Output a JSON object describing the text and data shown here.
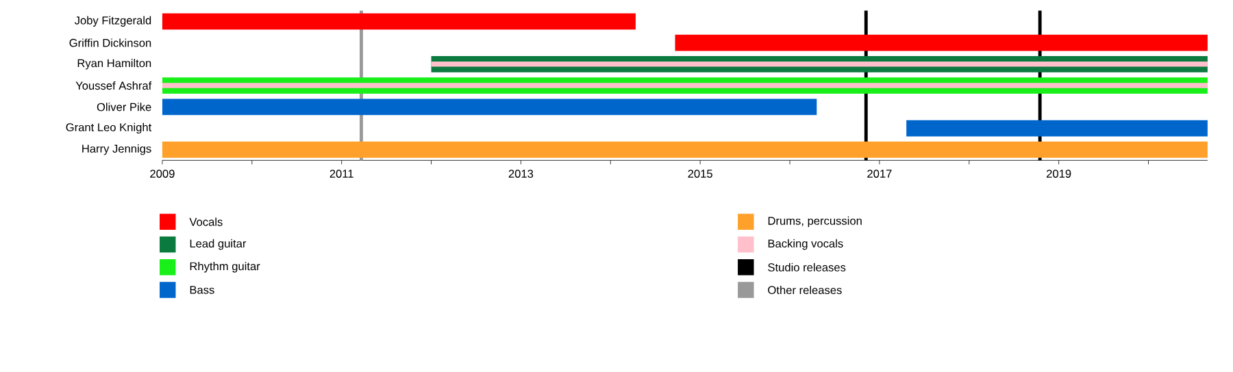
{
  "chart_data": {
    "type": "bar",
    "orientation": "horizontal",
    "legend": "bottom",
    "categories": [
      "Joby Fitzgerald",
      "Griffin Dickinson",
      "Ryan Hamilton",
      "Youssef Ashraf",
      "Oliver Pike",
      "Grant Leo Knight",
      "Harry Jennigs"
    ],
    "series": [
      {
        "name": "Vocals",
        "color": "#ff0000",
        "base": [
          2009,
          2014.72,
          null,
          null,
          null,
          null,
          null
        ],
        "values": [
          5.28,
          5.94,
          null,
          null,
          null,
          null,
          null
        ]
      },
      {
        "name": "Lead guitar",
        "color": "#0b7a3e",
        "base": [
          null,
          null,
          2012,
          null,
          null,
          null,
          null
        ],
        "values": [
          null,
          null,
          8.66,
          null,
          null,
          null,
          null
        ]
      },
      {
        "name": "Rhythm guitar",
        "color": "#19f019",
        "base": [
          null,
          null,
          null,
          2009,
          null,
          null,
          null
        ],
        "values": [
          null,
          null,
          null,
          11.66,
          null,
          null,
          null
        ]
      },
      {
        "name": "Bass",
        "color": "#0066cc",
        "base": [
          null,
          null,
          null,
          null,
          2009,
          2017.3,
          null
        ],
        "values": [
          null,
          null,
          null,
          null,
          7.3,
          3.36,
          null
        ]
      },
      {
        "name": "Drums, percussion",
        "color": "#ffa02a",
        "base": [
          null,
          null,
          null,
          null,
          null,
          null,
          2009
        ],
        "values": [
          null,
          null,
          null,
          null,
          null,
          null,
          11.66
        ]
      },
      {
        "name": "Backing vocals",
        "color": "#ffc0cb",
        "base": [
          null,
          null,
          2012,
          2009,
          null,
          null,
          null
        ],
        "values": [
          null,
          null,
          8.66,
          11.66,
          null,
          null,
          null
        ]
      }
    ],
    "xlim": [
      2009,
      2020.66
    ],
    "xticks": [
      2009,
      {
        "value": 2010,
        "label": null
      },
      2011,
      {
        "value": 2012,
        "label": null
      },
      2013,
      {
        "value": 2014,
        "label": null
      },
      2015,
      {
        "value": 2016,
        "label": null
      },
      2017,
      {
        "value": 2018,
        "label": null
      },
      2019,
      {
        "value": 2020,
        "label": null
      }
    ],
    "ref_lines": [
      {
        "axis": "x",
        "value": 2016.85,
        "label": "Studio releases",
        "color": "#000000"
      },
      {
        "axis": "x",
        "value": 2018.79,
        "color": "#000000"
      },
      {
        "axis": "x",
        "value": 2011.22,
        "label": "Other releases",
        "color": "#999999"
      }
    ]
  }
}
